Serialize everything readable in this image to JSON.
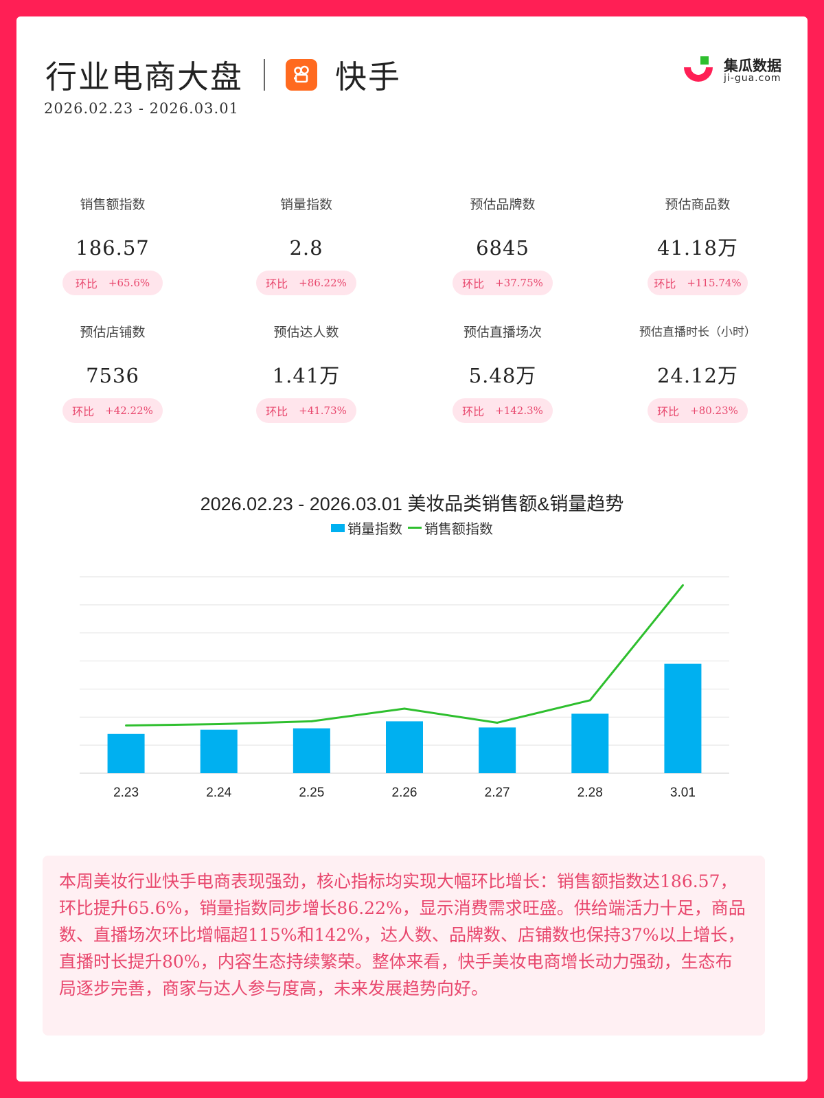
{
  "header": {
    "title": "行业电商大盘",
    "platform": "快手",
    "date_range": "2026.02.23 - 2026.03.01",
    "brand_name": "集瓜数据",
    "brand_url": "ji-gua.com"
  },
  "metrics": [
    {
      "label": "销售额指数",
      "value": "186.57",
      "badge_key": "环比",
      "badge_value": "+65.6%"
    },
    {
      "label": "销量指数",
      "value": "2.8",
      "badge_key": "环比",
      "badge_value": "+86.22%"
    },
    {
      "label": "预估品牌数",
      "value": "6845",
      "badge_key": "环比",
      "badge_value": "+37.75%"
    },
    {
      "label": "预估商品数",
      "value": "41.18万",
      "badge_key": "环比",
      "badge_value": "+115.74%"
    },
    {
      "label": "预估店铺数",
      "value": "7536",
      "badge_key": "环比",
      "badge_value": "+42.22%"
    },
    {
      "label": "预估达人数",
      "value": "1.41万",
      "badge_key": "环比",
      "badge_value": "+41.73%"
    },
    {
      "label": "预估直播场次",
      "value": "5.48万",
      "badge_key": "环比",
      "badge_value": "+142.3%"
    },
    {
      "label": "预估直播时长（小时）",
      "value": "24.12万",
      "badge_key": "环比",
      "badge_value": "+80.23%"
    }
  ],
  "chart_data": {
    "type": "bar",
    "title": "2026.02.23 - 2026.03.01 美妆品类销售额&销量趋势",
    "categories": [
      "2.23",
      "2.24",
      "2.25",
      "2.26",
      "2.27",
      "2.28",
      "3.01"
    ],
    "series": [
      {
        "name": "销量指数",
        "type": "bar",
        "color": "#00b0f0",
        "values": [
          1.4,
          1.55,
          1.6,
          1.85,
          1.63,
          2.12,
          3.9
        ]
      },
      {
        "name": "销售额指数",
        "type": "line",
        "color": "#2ebf2e",
        "values": [
          1.7,
          1.75,
          1.85,
          2.3,
          1.8,
          2.6,
          6.7
        ]
      }
    ],
    "ylim": [
      0,
      7
    ],
    "grid": true,
    "legend": "top-center"
  },
  "summary": "本周美妆行业快手电商表现强劲，核心指标均实现大幅环比增长：销售额指数达186.57，环比提升65.6%，销量指数同步增长86.22%，显示消费需求旺盛。供给端活力十足，商品数、直播场次环比增幅超115%和142%，达人数、品牌数、店铺数也保持37%以上增长，直播时长提升80%，内容生态持续繁荣。整体来看，快手美妆电商增长动力强劲，生态布局逐步完善，商家与达人参与度高，未来发展趋势向好。"
}
